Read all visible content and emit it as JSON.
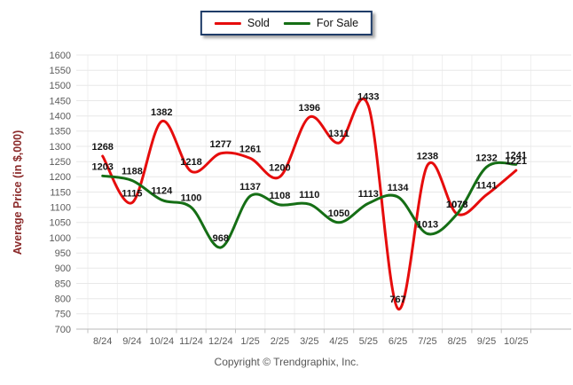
{
  "legend": {
    "items": [
      {
        "label": "Sold",
        "color": "#e60c0c"
      },
      {
        "label": "For Sale",
        "color": "#156e15"
      }
    ]
  },
  "footer": {
    "copyright": "Copyright © Trendgraphix, Inc."
  },
  "chart_data": {
    "type": "line",
    "title": "",
    "xlabel": "",
    "ylabel": "Average Price (in $,000)",
    "categories": [
      "8/24",
      "9/24",
      "10/24",
      "11/24",
      "12/24",
      "1/25",
      "2/25",
      "3/25",
      "4/25",
      "5/25",
      "6/25",
      "7/25",
      "8/25",
      "9/25",
      "10/25"
    ],
    "series": [
      {
        "name": "Sold",
        "color": "#e60c0c",
        "values": [
          1268,
          1115,
          1382,
          1218,
          1277,
          1261,
          1200,
          1396,
          1311,
          1433,
          767,
          1238,
          1078,
          1141,
          1221
        ]
      },
      {
        "name": "For Sale",
        "color": "#156e15",
        "values": [
          1203,
          1188,
          1124,
          1100,
          968,
          1137,
          1108,
          1110,
          1050,
          1113,
          1134,
          1013,
          1078,
          1232,
          1241
        ]
      }
    ],
    "ylim": [
      700,
      1600
    ],
    "ytick_step": 50,
    "grid": true,
    "smooth": true,
    "show_point_labels": true,
    "legend_position": "top-center",
    "style": {
      "background": "#ffffff",
      "grid_color": "#e8e8e8",
      "vgrid_color": "#efefef",
      "axis_line_color": "#b9b9b9",
      "tick_color": "#c0c0c0",
      "tick_label_color": "#5b5b5b",
      "point_label_color": "#141414",
      "ylabel_color": "#8b2a2a",
      "legend_border_color": "#1f3c68",
      "copyright_color": "#575757"
    }
  }
}
